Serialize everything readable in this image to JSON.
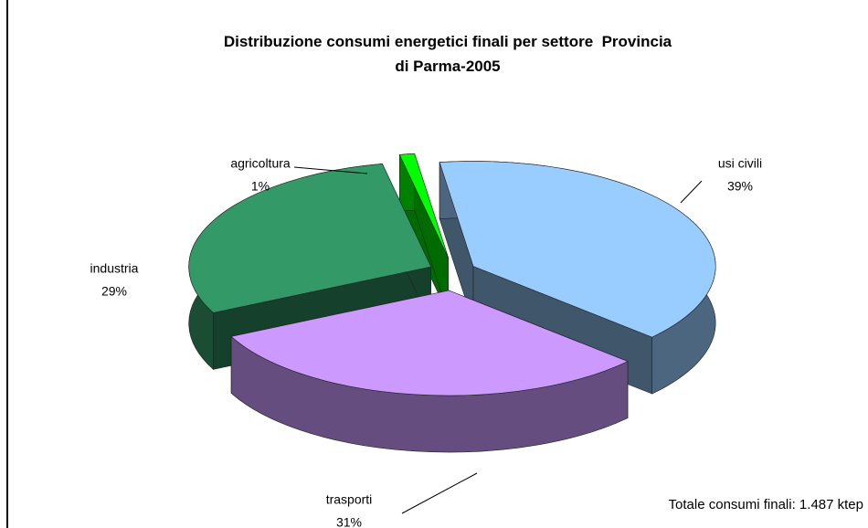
{
  "chart_data": {
    "type": "pie",
    "title": "Distribuzione consumi energetici finali per settore  Provincia\ndi Parma-2005",
    "categories": [
      "usi civili",
      "trasporti",
      "industria",
      "agricoltura"
    ],
    "values": [
      39,
      31,
      29,
      1
    ],
    "value_labels": [
      "39%",
      "31%",
      "29%",
      "1%"
    ],
    "colors": [
      "#99ccff",
      "#cc99ff",
      "#339966",
      "#00ff00"
    ],
    "annotation": "Totale consumi finali: 1.487 ktep"
  }
}
